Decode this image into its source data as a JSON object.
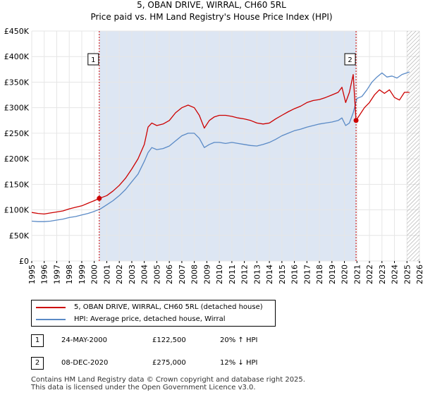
{
  "title_line1": "5, OBAN DRIVE, WIRRAL, CH60 5RL",
  "title_line2": "Price paid vs. HM Land Registry's House Price Index (HPI)",
  "legend": {
    "property": "5, OBAN DRIVE, WIRRAL, CH60 5RL (detached house)",
    "hpi": "HPI: Average price, detached house, Wirral"
  },
  "colors": {
    "property": "#cc0000",
    "hpi": "#5a8ac6",
    "band": "#dde6f3",
    "grid": "#e6e6e6"
  },
  "transactions": [
    {
      "num": "1",
      "date": "24-MAY-2000",
      "price": "£122,500",
      "hpi_change": "20% ↑ HPI"
    },
    {
      "num": "2",
      "date": "08-DEC-2020",
      "price": "£275,000",
      "hpi_change": "12% ↓ HPI"
    }
  ],
  "footer": {
    "line1": "Contains HM Land Registry data © Crown copyright and database right 2025.",
    "line2": "This data is licensed under the Open Government Licence v3.0."
  },
  "chart_data": {
    "type": "line",
    "title": "Price paid vs. HM Land Registry's House Price Index (HPI)",
    "xlabel": "",
    "ylabel": "",
    "xlim": [
      1995,
      2026
    ],
    "ylim": [
      0,
      450000
    ],
    "y_ticks": [
      0,
      50000,
      100000,
      150000,
      200000,
      250000,
      300000,
      350000,
      400000,
      450000
    ],
    "y_tick_labels": [
      "£0",
      "£50K",
      "£100K",
      "£150K",
      "£200K",
      "£250K",
      "£300K",
      "£350K",
      "£400K",
      "£450K"
    ],
    "x_ticks": [
      1995,
      1996,
      1997,
      1998,
      1999,
      2000,
      2001,
      2002,
      2003,
      2004,
      2005,
      2006,
      2007,
      2008,
      2009,
      2010,
      2011,
      2012,
      2013,
      2014,
      2015,
      2016,
      2017,
      2018,
      2019,
      2020,
      2021,
      2022,
      2023,
      2024,
      2025,
      2026
    ],
    "grid": true,
    "hatched_future_from": 2025.0,
    "shaded_band": [
      2000.4,
      2020.93
    ],
    "sales": [
      {
        "label": "1",
        "x": 2000.4,
        "y": 122500
      },
      {
        "label": "2",
        "x": 2020.93,
        "y": 275000
      }
    ],
    "series": [
      {
        "name": "5, OBAN DRIVE, WIRRAL, CH60 5RL (detached house)",
        "x": [
          1995,
          1995.5,
          1996,
          1996.5,
          1997,
          1997.5,
          1998,
          1998.5,
          1999,
          1999.5,
          2000,
          2000.4,
          2001,
          2001.5,
          2002,
          2002.5,
          2003,
          2003.5,
          2004,
          2004.3,
          2004.6,
          2005,
          2005.5,
          2006,
          2006.5,
          2007,
          2007.5,
          2008,
          2008.4,
          2008.8,
          2009.2,
          2009.6,
          2010,
          2010.5,
          2011,
          2011.5,
          2012,
          2012.5,
          2013,
          2013.5,
          2014,
          2014.5,
          2015,
          2015.5,
          2016,
          2016.5,
          2017,
          2017.5,
          2018,
          2018.5,
          2019,
          2019.5,
          2019.8,
          2020.1,
          2020.4,
          2020.7,
          2020.93,
          2021.2,
          2021.6,
          2022,
          2022.4,
          2022.8,
          2023.2,
          2023.6,
          2024,
          2024.4,
          2024.8,
          2025.2
        ],
        "values": [
          95000,
          93000,
          92000,
          94000,
          96000,
          98000,
          102000,
          105000,
          108000,
          113000,
          118000,
          122500,
          128000,
          137000,
          148000,
          162000,
          180000,
          200000,
          228000,
          262000,
          270000,
          265000,
          268000,
          275000,
          290000,
          300000,
          305000,
          300000,
          285000,
          260000,
          275000,
          282000,
          285000,
          285000,
          283000,
          280000,
          278000,
          275000,
          270000,
          268000,
          270000,
          278000,
          285000,
          292000,
          298000,
          303000,
          310000,
          314000,
          316000,
          320000,
          325000,
          330000,
          340000,
          310000,
          330000,
          365000,
          275000,
          285000,
          300000,
          310000,
          325000,
          335000,
          328000,
          335000,
          320000,
          315000,
          330000,
          330000
        ]
      },
      {
        "name": "HPI: Average price, detached house, Wirral",
        "x": [
          1995,
          1995.5,
          1996,
          1996.5,
          1997,
          1997.5,
          1998,
          1998.5,
          1999,
          1999.5,
          2000,
          2000.5,
          2001,
          2001.5,
          2002,
          2002.5,
          2003,
          2003.5,
          2004,
          2004.3,
          2004.6,
          2005,
          2005.5,
          2006,
          2006.5,
          2007,
          2007.5,
          2008,
          2008.4,
          2008.8,
          2009.2,
          2009.6,
          2010,
          2010.5,
          2011,
          2011.5,
          2012,
          2012.5,
          2013,
          2013.5,
          2014,
          2014.5,
          2015,
          2015.5,
          2016,
          2016.5,
          2017,
          2017.5,
          2018,
          2018.5,
          2019,
          2019.5,
          2019.8,
          2020.1,
          2020.4,
          2020.7,
          2021,
          2021.4,
          2021.8,
          2022.2,
          2022.6,
          2023,
          2023.4,
          2023.8,
          2024.2,
          2024.6,
          2025.2
        ],
        "values": [
          78000,
          77000,
          77000,
          78000,
          80000,
          82000,
          85000,
          87000,
          90000,
          93000,
          97000,
          102000,
          110000,
          118000,
          128000,
          140000,
          155000,
          170000,
          195000,
          212000,
          222000,
          218000,
          220000,
          225000,
          235000,
          245000,
          250000,
          250000,
          240000,
          222000,
          228000,
          232000,
          232000,
          230000,
          232000,
          230000,
          228000,
          226000,
          225000,
          228000,
          232000,
          238000,
          245000,
          250000,
          255000,
          258000,
          262000,
          265000,
          268000,
          270000,
          272000,
          275000,
          280000,
          265000,
          270000,
          290000,
          318000,
          322000,
          335000,
          350000,
          360000,
          368000,
          360000,
          362000,
          358000,
          365000,
          370000
        ]
      }
    ]
  }
}
